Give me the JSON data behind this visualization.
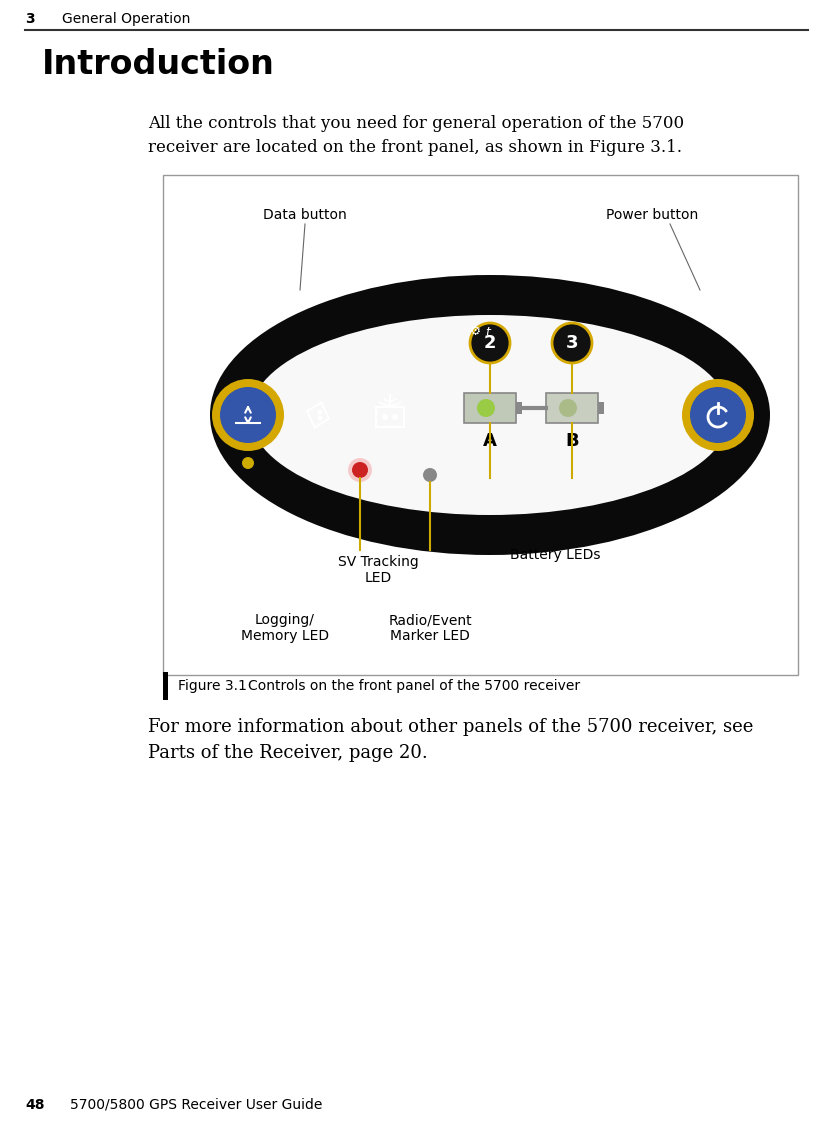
{
  "page_header_number": "3",
  "page_header_text": "General Operation",
  "page_footer_number": "48",
  "page_footer_text": "5700/5800 GPS Receiver User Guide",
  "title": "Introduction",
  "intro_text": "All the controls that you need for general operation of the 5700\nreceiver are located on the front panel, as shown in Figure 3.1.",
  "figure_caption_bold": "Figure 3.1",
  "figure_caption_rest": "     Controls on the front panel of the 5700 receiver",
  "footer_text": "For more information about other panels of the 5700 receiver, see\nParts of the Receiver, page 20.",
  "label_data_button": "Data button",
  "label_power_button": "Power button",
  "label_sv_tracking": "SV Tracking\nLED",
  "label_battery_leds": "Battery LEDs",
  "label_logging_memory": "Logging/\nMemory LED",
  "label_radio_event": "Radio/Event\nMarker LED",
  "bg_color": "#ffffff",
  "text_color": "#000000",
  "ellipse_black": "#0a0a0a",
  "ellipse_interior": "#ffffff",
  "button_blue": "#3355aa",
  "button_gold_ring": "#d4a800",
  "green_led_bright": "#99cc44",
  "green_led_dim": "#aabb88",
  "red_led": "#cc2222",
  "gray_led": "#888888",
  "yellow_small": "#ccaa00",
  "num_circle_bg": "#111111",
  "battery_body": "#c0c8b8",
  "battery_border": "#888888",
  "line_color": "#ccaa00",
  "annotation_line": "#ccaa00"
}
